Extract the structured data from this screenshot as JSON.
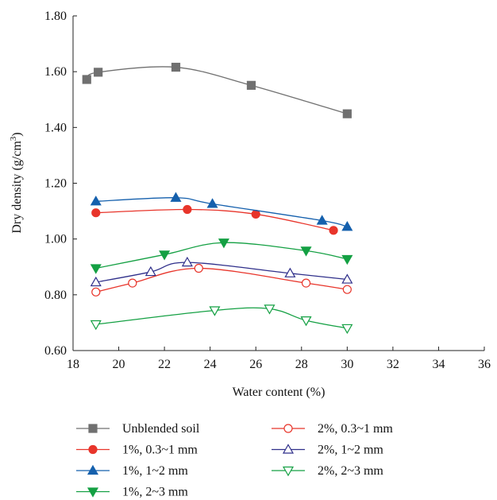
{
  "chart_data": {
    "type": "line",
    "xlabel": "Water content (%)",
    "ylabel": {
      "main": "Dry density (g/cm",
      "sup": "3",
      "close": ")"
    },
    "xlim": [
      18,
      36
    ],
    "ylim": [
      0.6,
      1.8
    ],
    "x_ticks": [
      "18",
      "20",
      "22",
      "24",
      "26",
      "28",
      "30",
      "32",
      "34",
      "36"
    ],
    "y_ticks": [
      "0.60",
      "0.80",
      "1.00",
      "1.20",
      "1.40",
      "1.60",
      "1.80"
    ],
    "grid": false,
    "legend_position": "bottom",
    "series": [
      {
        "name": "Unblended soil",
        "color": "#707070",
        "marker": "square",
        "fill": true,
        "points": [
          [
            18.6,
            1.572
          ],
          [
            19.1,
            1.598
          ],
          [
            22.5,
            1.616
          ],
          [
            25.8,
            1.551
          ],
          [
            30.0,
            1.449
          ]
        ]
      },
      {
        "name": "1%, 0.3~1 mm",
        "color": "#e8352b",
        "marker": "circle",
        "fill": true,
        "points": [
          [
            19.0,
            1.094
          ],
          [
            23.0,
            1.106
          ],
          [
            26.0,
            1.089
          ],
          [
            29.4,
            1.031
          ]
        ]
      },
      {
        "name": "1%, 1~2 mm",
        "color": "#1560ad",
        "marker": "triangle-up",
        "fill": true,
        "points": [
          [
            19.0,
            1.135
          ],
          [
            22.5,
            1.148
          ],
          [
            24.1,
            1.126
          ],
          [
            28.9,
            1.066
          ],
          [
            30.0,
            1.044
          ]
        ]
      },
      {
        "name": "1%, 2~3 mm",
        "color": "#14a043",
        "marker": "triangle-down",
        "fill": true,
        "points": [
          [
            19.0,
            0.895
          ],
          [
            22.0,
            0.944
          ],
          [
            24.6,
            0.987
          ],
          [
            28.2,
            0.958
          ],
          [
            30.0,
            0.928
          ]
        ]
      },
      {
        "name": "2%, 0.3~1 mm",
        "color": "#e8352b",
        "marker": "circle",
        "fill": false,
        "points": [
          [
            19.0,
            0.81
          ],
          [
            20.6,
            0.842
          ],
          [
            23.5,
            0.895
          ],
          [
            28.2,
            0.842
          ],
          [
            30.0,
            0.819
          ]
        ]
      },
      {
        "name": "2%, 1~2 mm",
        "color": "#2f2f8a",
        "marker": "triangle-up",
        "fill": false,
        "points": [
          [
            19.0,
            0.845
          ],
          [
            21.4,
            0.882
          ],
          [
            23.0,
            0.916
          ],
          [
            27.5,
            0.877
          ],
          [
            30.0,
            0.855
          ]
        ]
      },
      {
        "name": "2%, 2~3 mm",
        "color": "#14a043",
        "marker": "triangle-down",
        "fill": false,
        "points": [
          [
            19.0,
            0.694
          ],
          [
            24.2,
            0.744
          ],
          [
            26.6,
            0.75
          ],
          [
            28.2,
            0.708
          ],
          [
            30.0,
            0.68
          ]
        ]
      }
    ]
  }
}
